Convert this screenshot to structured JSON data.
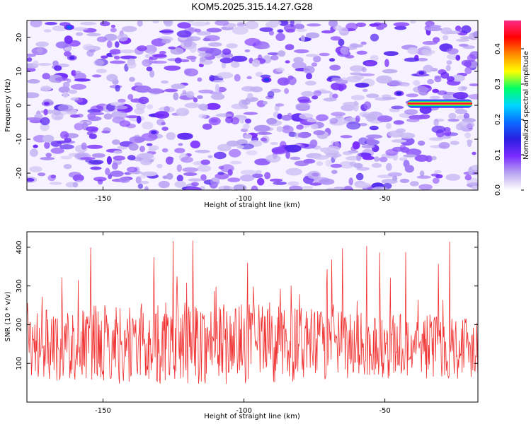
{
  "chart_data": [
    {
      "type": "heatmap",
      "title": "KOM5.2025.315.14.27.G28",
      "xlabel": "Height of straight line (km)",
      "ylabel": "Frequency (Hz)",
      "xlim": [
        -177,
        -17
      ],
      "ylim": [
        -25,
        25
      ],
      "xticks": [
        -150,
        -100,
        -50
      ],
      "yticks": [
        -20,
        -10,
        0,
        10,
        20
      ],
      "colorbar": {
        "label": "Normalized spectral amplitude",
        "range": [
          0.0,
          0.48
        ],
        "ticks": [
          0.0,
          0.1,
          0.2,
          0.3,
          0.4
        ],
        "colors": [
          "#ffffff",
          "#b9a6f0",
          "#7a2cff",
          "#2a1ee0",
          "#0a6bff",
          "#00d7ff",
          "#00ff66",
          "#ffff00",
          "#ff8a00",
          "#ff0000",
          "#ff2a8a"
        ]
      },
      "features": [
        {
          "label": "strong signal",
          "x_start": -42,
          "x_end": -19,
          "y": 0.5,
          "peak": 0.45
        },
        {
          "label": "spot",
          "x": -162,
          "y": 23,
          "value": 0.18
        },
        {
          "label": "spot",
          "x": -161,
          "y": 14,
          "value": 0.12
        },
        {
          "label": "spot",
          "x": -92,
          "y": 7.5,
          "value": 0.16
        },
        {
          "label": "spot",
          "x": -45,
          "y": 3.5,
          "value": 0.14
        },
        {
          "label": "spot",
          "x": -37,
          "y": 9.5,
          "value": 0.12
        },
        {
          "label": "spot",
          "x": -132,
          "y": -8,
          "value": 0.12
        },
        {
          "label": "spot",
          "x": -170,
          "y": 0.5,
          "value": 0.1
        }
      ]
    },
    {
      "type": "line",
      "xlabel": "Height of straight line (km)",
      "ylabel": "SNR (10 * v/v)",
      "xlim": [
        -177,
        -17
      ],
      "ylim": [
        0,
        440
      ],
      "xticks": [
        -150,
        -100,
        -50
      ],
      "yticks": [
        100,
        200,
        300,
        400
      ],
      "series": [
        {
          "name": "SNR",
          "color": "#f03030",
          "baseline": 120,
          "noise_amplitude_min": 90,
          "noise_amplitude_max": 160,
          "peak": 435,
          "n_points": 800
        }
      ]
    }
  ]
}
